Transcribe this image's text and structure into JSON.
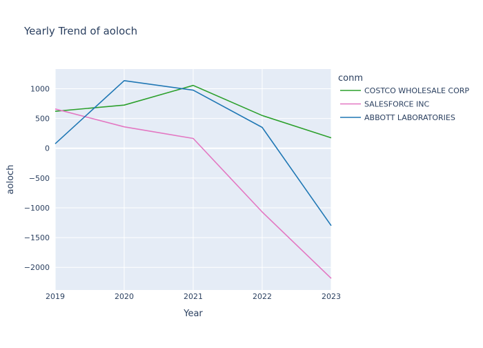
{
  "chart_data": {
    "type": "line",
    "title": "Yearly Trend of aoloch",
    "xlabel": "Year",
    "ylabel": "aoloch",
    "x": [
      2019,
      2020,
      2021,
      2022,
      2023
    ],
    "xlim": [
      2019,
      2023
    ],
    "ylim": [
      -2380,
      1330
    ],
    "yticks": [
      1000,
      500,
      0,
      -500,
      -1000,
      -1500,
      -2000
    ],
    "ytick_labels": [
      "1000",
      "500",
      "0",
      "−500",
      "−1000",
      "−1500",
      "−2000"
    ],
    "xtick_labels": [
      "2019",
      "2020",
      "2021",
      "2022",
      "2023"
    ],
    "grid": true,
    "legend": {
      "title": "conm",
      "placement": "right"
    },
    "series": [
      {
        "name": "COSTCO WHOLESALE CORP",
        "color": "#2ca02c",
        "values": [
          620,
          725,
          1055,
          550,
          175
        ]
      },
      {
        "name": "SALESFORCE INC",
        "color": "#e377c2",
        "values": [
          660,
          360,
          165,
          -1070,
          -2185
        ]
      },
      {
        "name": "ABBOTT LABORATORIES",
        "color": "#1f77b4",
        "values": [
          75,
          1135,
          975,
          350,
          -1300
        ]
      }
    ]
  }
}
